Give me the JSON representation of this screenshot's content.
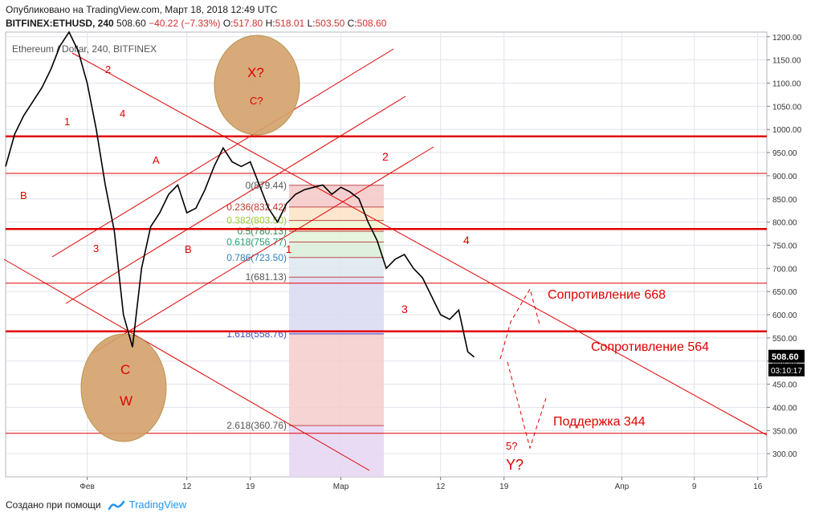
{
  "header": {
    "published": "Опубликовано на TradingView.com, Март 18, 2018 12:49 UTC",
    "symbol": "BITFINEX:ETHUSD, 240",
    "last": "508.60",
    "change": "−40.22 (−7.33%)",
    "o_label": "O:",
    "o": "517.80",
    "h_label": "H:",
    "h": "518.01",
    "l_label": "L:",
    "l": "503.50",
    "c_label": "C:",
    "c": "508.60"
  },
  "chart_title": "Ethereum / Dollar, 240, BITFINEX",
  "footer": {
    "created": "Создано при помощи",
    "brand": "TradingView"
  },
  "colors": {
    "red": "#e00000",
    "candle": "#000000",
    "grid": "#e0e3eb",
    "ellipse": "#d4a16b",
    "price_label": "#000000"
  },
  "chart_data": {
    "type": "line",
    "ylim": [
      250,
      1210
    ],
    "y_ticks": [
      1200,
      1150,
      1100,
      1050,
      1000,
      950,
      900,
      850,
      800,
      750,
      700,
      650,
      600,
      550,
      500,
      450,
      400,
      350,
      300
    ],
    "x_ticks": [
      {
        "label": "Фев",
        "x": 5
      },
      {
        "label": "12",
        "x": 16
      },
      {
        "label": "19",
        "x": 23
      },
      {
        "label": "Мар",
        "x": 33
      },
      {
        "label": "12",
        "x": 44
      },
      {
        "label": "19",
        "x": 51
      },
      {
        "label": "Апр",
        "x": 64
      },
      {
        "label": "9",
        "x": 72
      },
      {
        "label": "16",
        "x": 79
      }
    ],
    "xlim": [
      -4,
      80
    ],
    "price_label": "508.60",
    "countdown": "03:10:17",
    "series": [
      {
        "x": [
          -4,
          -3,
          -2,
          -1,
          0,
          1,
          2,
          3,
          4,
          5,
          6,
          7,
          8,
          9,
          10,
          11,
          12,
          13,
          14,
          15,
          16,
          17,
          18,
          19,
          20,
          21,
          22,
          23,
          24,
          25,
          26,
          27,
          28,
          29,
          30,
          31,
          32,
          33,
          34,
          35,
          36,
          37,
          38,
          39,
          40,
          41,
          42,
          43,
          44,
          45,
          46,
          47,
          47.7
        ],
        "y": [
          920,
          990,
          1030,
          1060,
          1090,
          1130,
          1180,
          1210,
          1170,
          1100,
          1000,
          880,
          780,
          600,
          530,
          700,
          790,
          820,
          860,
          880,
          820,
          830,
          870,
          920,
          960,
          930,
          920,
          930,
          880,
          830,
          800,
          840,
          860,
          870,
          875,
          880,
          860,
          875,
          865,
          850,
          800,
          760,
          700,
          720,
          730,
          700,
          680,
          640,
          600,
          590,
          610,
          520,
          508.6
        ]
      }
    ],
    "resistance_lines": [
      985,
      785
    ],
    "horizontal_levels": [
      564,
      668,
      344,
      905
    ],
    "fibonacci": [
      {
        "label": "0(879.44)",
        "price": 879.44
      },
      {
        "label": "0.236(832.42)",
        "price": 832.42
      },
      {
        "label": "0.382(803.50)",
        "price": 803.5
      },
      {
        "label": "0.5(780.13)",
        "price": 780.13
      },
      {
        "label": "0.618(756.77)",
        "price": 756.77
      },
      {
        "label": "0.786(723.50)",
        "price": 723.5
      },
      {
        "label": "1(681.13)",
        "price": 681.13
      },
      {
        "label": "1.618(558.76)",
        "price": 558.76
      },
      {
        "label": "2.618(360.76)",
        "price": 360.76
      }
    ],
    "annotations": [
      {
        "text": "Сопротивление 668"
      },
      {
        "text": "Сопротивление 564"
      },
      {
        "text": "Поддержка 344"
      },
      {
        "text": "X?"
      },
      {
        "text": "C?"
      },
      {
        "text": "C"
      },
      {
        "text": "W"
      },
      {
        "text": "5?"
      },
      {
        "text": "Y?"
      },
      {
        "text": "1"
      },
      {
        "text": "2"
      },
      {
        "text": "3"
      },
      {
        "text": "4"
      },
      {
        "text": "A"
      },
      {
        "text": "B"
      }
    ]
  }
}
